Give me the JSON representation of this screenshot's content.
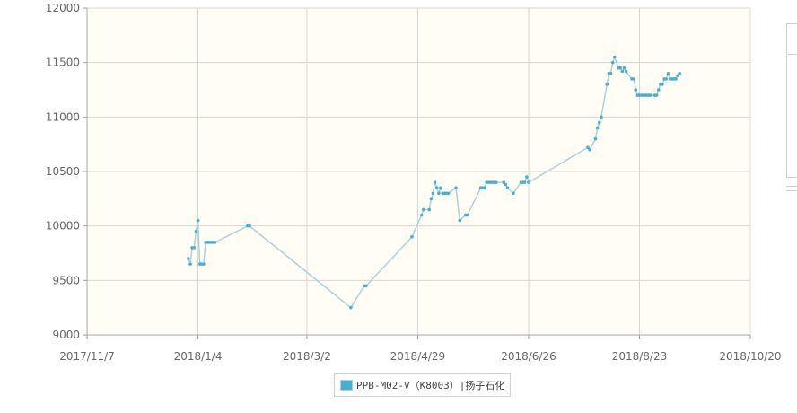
{
  "chart_data": {
    "type": "line",
    "title": "",
    "xlabel": "",
    "ylabel": "",
    "ylim": [
      9000,
      12000
    ],
    "yticks": [
      9000,
      9500,
      10000,
      10500,
      11000,
      11500,
      12000
    ],
    "xlim": [
      "2017-11-07",
      "2018-10-20"
    ],
    "xticks": [
      "2017-11-07",
      "2018-01-04",
      "2018-03-02",
      "2018-04-29",
      "2018-06-26",
      "2018-08-23",
      "2018-10-20"
    ],
    "xtick_labels": [
      "2017/11/7",
      "2018/1/4",
      "2018/3/2",
      "2018/4/29",
      "2018/6/26",
      "2018/8/23",
      "2018/10/20"
    ],
    "grid": true,
    "legend_position": "bottom-center",
    "series": [
      {
        "name": "PPB-M02-V（K8003）|扬子石化",
        "color": "#4aafc8",
        "line_color": "#a9d3dc",
        "x": [
          "2017-12-30",
          "2017-12-31",
          "2018-01-01",
          "2018-01-02",
          "2018-01-03",
          "2018-01-04",
          "2018-01-05",
          "2018-01-06",
          "2018-01-07",
          "2018-01-08",
          "2018-01-09",
          "2018-01-10",
          "2018-01-11",
          "2018-01-12",
          "2018-01-13",
          "2018-01-30",
          "2018-01-31",
          "2018-03-25",
          "2018-04-01",
          "2018-04-02",
          "2018-04-26",
          "2018-05-01",
          "2018-05-02",
          "2018-05-05",
          "2018-05-06",
          "2018-05-07",
          "2018-05-08",
          "2018-05-09",
          "2018-05-10",
          "2018-05-11",
          "2018-05-12",
          "2018-05-13",
          "2018-05-14",
          "2018-05-15",
          "2018-05-19",
          "2018-05-21",
          "2018-05-24",
          "2018-05-25",
          "2018-06-01",
          "2018-06-02",
          "2018-06-03",
          "2018-06-04",
          "2018-06-05",
          "2018-06-06",
          "2018-06-07",
          "2018-06-08",
          "2018-06-09",
          "2018-06-13",
          "2018-06-14",
          "2018-06-15",
          "2018-06-18",
          "2018-06-22",
          "2018-06-23",
          "2018-06-24",
          "2018-06-25",
          "2018-06-26",
          "2018-07-27",
          "2018-07-28",
          "2018-07-31",
          "2018-08-01",
          "2018-08-02",
          "2018-08-03",
          "2018-08-06",
          "2018-08-07",
          "2018-08-08",
          "2018-08-09",
          "2018-08-10",
          "2018-08-12",
          "2018-08-13",
          "2018-08-14",
          "2018-08-15",
          "2018-08-16",
          "2018-08-19",
          "2018-08-20",
          "2018-08-21",
          "2018-08-22",
          "2018-08-23",
          "2018-08-24",
          "2018-08-25",
          "2018-08-26",
          "2018-08-27",
          "2018-08-28",
          "2018-08-29",
          "2018-08-31",
          "2018-09-01",
          "2018-09-02",
          "2018-09-03",
          "2018-09-04",
          "2018-09-05",
          "2018-09-06",
          "2018-09-07",
          "2018-09-08",
          "2018-09-09",
          "2018-09-10",
          "2018-09-11",
          "2018-09-12",
          "2018-09-13"
        ],
        "y": [
          9700,
          9650,
          9800,
          9800,
          9950,
          10050,
          9650,
          9650,
          9650,
          9850,
          9850,
          9850,
          9850,
          9850,
          9850,
          10000,
          10000,
          9250,
          9450,
          9450,
          9900,
          10100,
          10150,
          10150,
          10250,
          10300,
          10400,
          10350,
          10300,
          10350,
          10300,
          10300,
          10300,
          10300,
          10350,
          10050,
          10100,
          10100,
          10350,
          10350,
          10350,
          10400,
          10400,
          10400,
          10400,
          10400,
          10400,
          10400,
          10380,
          10350,
          10300,
          10400,
          10400,
          10400,
          10450,
          10400,
          10720,
          10700,
          10800,
          10900,
          10950,
          11000,
          11300,
          11400,
          11400,
          11500,
          11550,
          11450,
          11450,
          11420,
          11450,
          11420,
          11350,
          11350,
          11250,
          11200,
          11200,
          11200,
          11200,
          11200,
          11200,
          11200,
          11200,
          11200,
          11200,
          11250,
          11300,
          11300,
          11350,
          11350,
          11400,
          11350,
          11350,
          11350,
          11350,
          11380,
          11400
        ]
      }
    ]
  }
}
